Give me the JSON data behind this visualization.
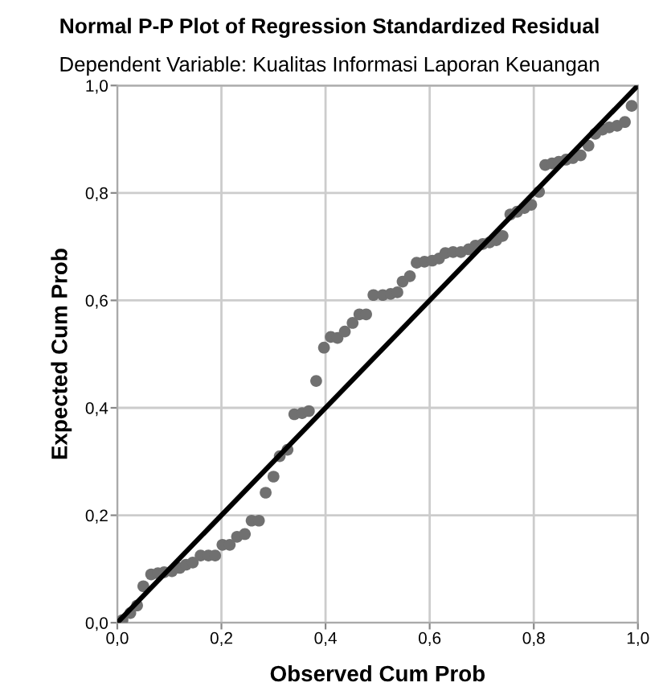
{
  "chart_data": {
    "type": "scatter",
    "title": "Normal P-P Plot of Regression Standardized Residual",
    "subtitle": "Dependent Variable: Kualitas Informasi Laporan Keuangan",
    "xlabel": "Observed Cum Prob",
    "ylabel": "Expected Cum Prob",
    "xlim": [
      0,
      1
    ],
    "ylim": [
      0,
      1
    ],
    "xticks": [
      {
        "value": 0,
        "label": "0,0"
      },
      {
        "value": 0.2,
        "label": "0,2"
      },
      {
        "value": 0.4,
        "label": "0,4"
      },
      {
        "value": 0.6,
        "label": "0,6"
      },
      {
        "value": 0.8,
        "label": "0,8"
      },
      {
        "value": 1,
        "label": "1,0"
      }
    ],
    "yticks": [
      {
        "value": 0,
        "label": "0,0"
      },
      {
        "value": 0.2,
        "label": "0,2"
      },
      {
        "value": 0.4,
        "label": "0,4"
      },
      {
        "value": 0.6,
        "label": "0,6"
      },
      {
        "value": 0.8,
        "label": "0,8"
      },
      {
        "value": 1,
        "label": "1,0"
      }
    ],
    "grid": true,
    "series": [
      {
        "marker": "circle",
        "color": "#707070",
        "x": [
          0.01,
          0.025,
          0.038,
          0.05,
          0.065,
          0.078,
          0.09,
          0.105,
          0.12,
          0.132,
          0.145,
          0.16,
          0.175,
          0.188,
          0.202,
          0.216,
          0.23,
          0.245,
          0.258,
          0.272,
          0.285,
          0.3,
          0.312,
          0.327,
          0.34,
          0.355,
          0.368,
          0.382,
          0.397,
          0.41,
          0.423,
          0.437,
          0.452,
          0.465,
          0.478,
          0.492,
          0.51,
          0.525,
          0.538,
          0.548,
          0.562,
          0.575,
          0.59,
          0.605,
          0.618,
          0.63,
          0.645,
          0.66,
          0.675,
          0.688,
          0.702,
          0.715,
          0.728,
          0.74,
          0.755,
          0.768,
          0.782,
          0.795,
          0.81,
          0.822,
          0.835,
          0.848,
          0.862,
          0.875,
          0.89,
          0.905,
          0.918,
          0.932,
          0.945,
          0.96,
          0.975,
          0.988
        ],
        "values": [
          0.005,
          0.018,
          0.032,
          0.068,
          0.09,
          0.092,
          0.094,
          0.096,
          0.102,
          0.108,
          0.112,
          0.125,
          0.125,
          0.125,
          0.145,
          0.145,
          0.16,
          0.165,
          0.19,
          0.19,
          0.242,
          0.272,
          0.31,
          0.322,
          0.388,
          0.39,
          0.394,
          0.45,
          0.512,
          0.532,
          0.53,
          0.542,
          0.558,
          0.574,
          0.574,
          0.61,
          0.61,
          0.612,
          0.615,
          0.635,
          0.645,
          0.67,
          0.672,
          0.674,
          0.678,
          0.688,
          0.69,
          0.69,
          0.695,
          0.702,
          0.705,
          0.708,
          0.712,
          0.72,
          0.76,
          0.765,
          0.772,
          0.778,
          0.802,
          0.852,
          0.855,
          0.858,
          0.862,
          0.865,
          0.87,
          0.888,
          0.91,
          0.918,
          0.922,
          0.925,
          0.932,
          0.962
        ]
      },
      {
        "type": "line",
        "color": "#000000",
        "x": [
          0,
          1
        ],
        "values": [
          0,
          1
        ]
      }
    ]
  }
}
